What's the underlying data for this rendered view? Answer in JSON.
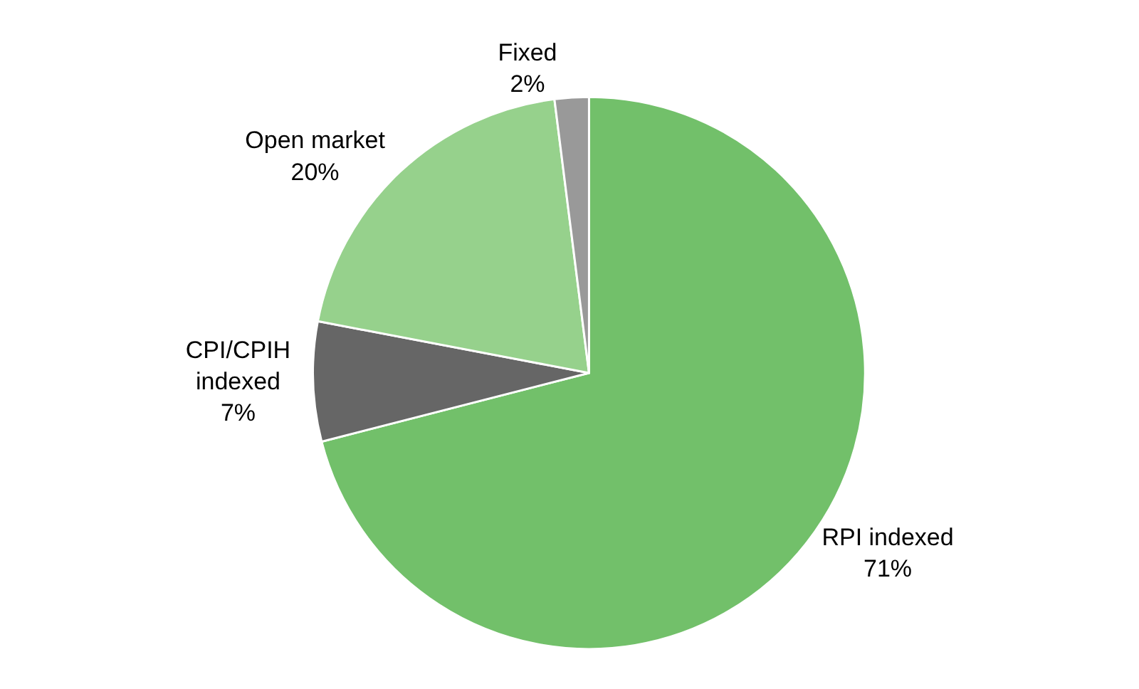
{
  "chart_data": {
    "type": "pie",
    "categories": [
      "RPI indexed",
      "CPI/CPIH indexed",
      "Open market",
      "Fixed"
    ],
    "values": [
      71,
      7,
      20,
      2
    ],
    "value_labels": [
      "71%",
      "7%",
      "20%",
      "2%"
    ],
    "colors": [
      "#72c06a",
      "#666666",
      "#96d18c",
      "#999999"
    ]
  }
}
